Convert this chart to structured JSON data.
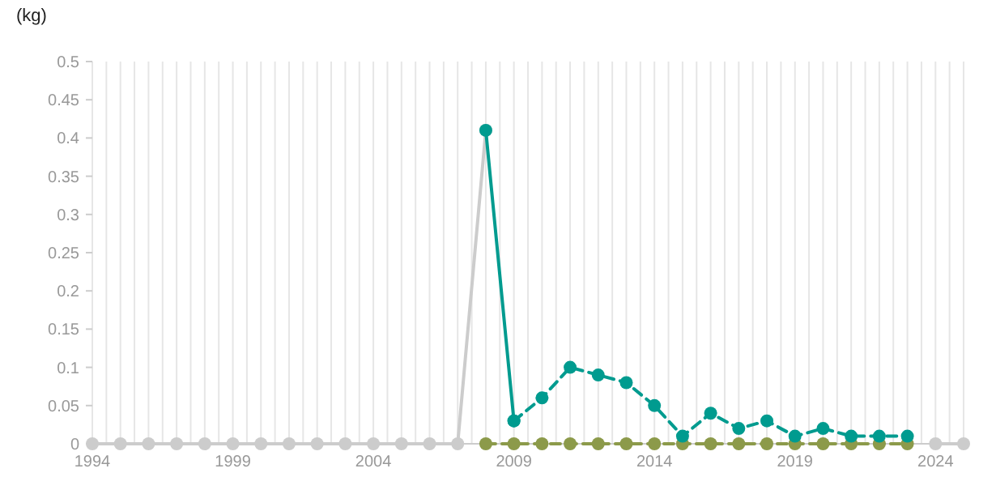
{
  "chart_data": {
    "type": "line",
    "ylabel": "(kg)",
    "xlim": [
      1994,
      2025
    ],
    "xticks": [
      {
        "value": 1994,
        "label": "1994"
      },
      {
        "value": 1994.5,
        "label": null
      },
      {
        "value": 1995,
        "label": null
      },
      {
        "value": 1995.5,
        "label": null
      },
      {
        "value": 1996,
        "label": null
      },
      {
        "value": 1996.5,
        "label": null
      },
      {
        "value": 1997,
        "label": null
      },
      {
        "value": 1997.5,
        "label": null
      },
      {
        "value": 1998,
        "label": null
      },
      {
        "value": 1998.5,
        "label": null
      },
      {
        "value": 1999,
        "label": "1999"
      },
      {
        "value": 1999.5,
        "label": null
      },
      {
        "value": 2000,
        "label": null
      },
      {
        "value": 2000.5,
        "label": null
      },
      {
        "value": 2001,
        "label": null
      },
      {
        "value": 2001.5,
        "label": null
      },
      {
        "value": 2002,
        "label": null
      },
      {
        "value": 2002.5,
        "label": null
      },
      {
        "value": 2003,
        "label": null
      },
      {
        "value": 2003.5,
        "label": null
      },
      {
        "value": 2004,
        "label": "2004"
      },
      {
        "value": 2004.5,
        "label": null
      },
      {
        "value": 2005,
        "label": null
      },
      {
        "value": 2005.5,
        "label": null
      },
      {
        "value": 2006,
        "label": null
      },
      {
        "value": 2006.5,
        "label": null
      },
      {
        "value": 2007,
        "label": null
      },
      {
        "value": 2007.5,
        "label": null
      },
      {
        "value": 2008,
        "label": null
      },
      {
        "value": 2008.5,
        "label": null
      },
      {
        "value": 2009,
        "label": "2009"
      },
      {
        "value": 2009.5,
        "label": null
      },
      {
        "value": 2010,
        "label": null
      },
      {
        "value": 2010.5,
        "label": null
      },
      {
        "value": 2011,
        "label": null
      },
      {
        "value": 2011.5,
        "label": null
      },
      {
        "value": 2012,
        "label": null
      },
      {
        "value": 2012.5,
        "label": null
      },
      {
        "value": 2013,
        "label": null
      },
      {
        "value": 2013.5,
        "label": null
      },
      {
        "value": 2014,
        "label": "2014"
      },
      {
        "value": 2014.5,
        "label": null
      },
      {
        "value": 2015,
        "label": null
      },
      {
        "value": 2015.5,
        "label": null
      },
      {
        "value": 2016,
        "label": null
      },
      {
        "value": 2016.5,
        "label": null
      },
      {
        "value": 2017,
        "label": null
      },
      {
        "value": 2017.5,
        "label": null
      },
      {
        "value": 2018,
        "label": null
      },
      {
        "value": 2018.5,
        "label": null
      },
      {
        "value": 2019,
        "label": "2019"
      },
      {
        "value": 2019.5,
        "label": null
      },
      {
        "value": 2020,
        "label": null
      },
      {
        "value": 2020.5,
        "label": null
      },
      {
        "value": 2021,
        "label": null
      },
      {
        "value": 2021.5,
        "label": null
      },
      {
        "value": 2022,
        "label": null
      },
      {
        "value": 2022.5,
        "label": null
      },
      {
        "value": 2023,
        "label": null
      },
      {
        "value": 2023.5,
        "label": null
      },
      {
        "value": 2024,
        "label": "2024"
      },
      {
        "value": 2024.5,
        "label": null
      },
      {
        "value": 2025,
        "label": null
      }
    ],
    "ylim": [
      0,
      0.5
    ],
    "yticks": [
      0,
      0.05,
      0.1,
      0.15,
      0.2,
      0.25,
      0.3,
      0.35,
      0.4,
      0.45,
      0.5
    ],
    "grid": "x",
    "marker": "circle",
    "series": [
      {
        "color": "#cccccc",
        "line_style": "solid",
        "x": [
          1994,
          1995,
          1996,
          1997,
          1998,
          1999,
          2000,
          2001,
          2002,
          2003,
          2004,
          2005,
          2006,
          2007,
          2008,
          2016,
          2024,
          2025
        ],
        "values": [
          0,
          0,
          0,
          0,
          0,
          0,
          0,
          0,
          0,
          0,
          0,
          0,
          0,
          0,
          0.41,
          null,
          0,
          0
        ]
      },
      {
        "color": "#8c9a4a",
        "line_style": "dashed",
        "x": [
          2008,
          2009,
          2010,
          2011,
          2012,
          2013,
          2014,
          2015,
          2016,
          2017,
          2018,
          2019,
          2020,
          2021,
          2022,
          2023
        ],
        "values": [
          0,
          0,
          0,
          0,
          0,
          0,
          0,
          0,
          0,
          0,
          0,
          0,
          0,
          0,
          0,
          0
        ]
      },
      {
        "color": "#009b8f",
        "line_style": "solid",
        "x": [
          2008,
          2009
        ],
        "values": [
          0.41,
          0.03
        ]
      },
      {
        "color": "#009b8f",
        "line_style": "dashed",
        "x": [
          2009,
          2010,
          2011,
          2012,
          2013,
          2014,
          2015,
          2016,
          2017,
          2018,
          2019,
          2020,
          2021,
          2022,
          2023
        ],
        "values": [
          0.03,
          0.06,
          0.1,
          0.09,
          0.08,
          0.05,
          0.01,
          0.04,
          0.02,
          0.03,
          0.01,
          0.02,
          0.01,
          0.01,
          0.01
        ]
      }
    ]
  }
}
